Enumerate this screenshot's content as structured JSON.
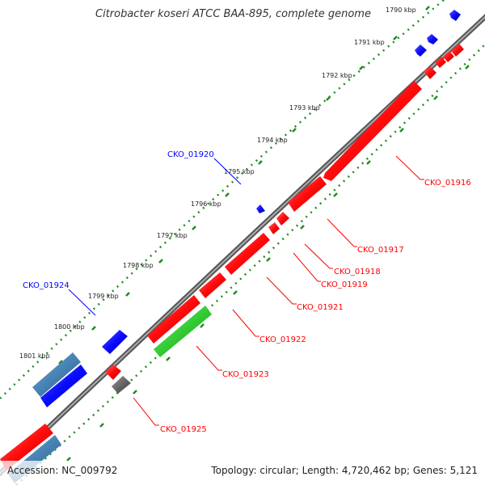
{
  "title": "Citrobacter koseri ATCC BAA-895, complete genome",
  "accession": "Accession: NC_009792",
  "summary": "Topology: circular; Length: 4,720,462 bp; Genes: 5,121",
  "ticks": [
    "1790 kbp",
    "1791 kbp",
    "1792 kbp",
    "1793 kbp",
    "1794 kbp",
    "1795 kbp",
    "1796 kbp",
    "1797 kbp",
    "1798 kbp",
    "1799 kbp",
    "1800 kbp",
    "1801 kbp"
  ],
  "genes": {
    "cko_01916": "CKO_01916",
    "cko_01917": "CKO_01917",
    "cko_01918": "CKO_01918",
    "cko_01919": "CKO_01919",
    "cko_01920": "CKO_01920",
    "cko_01921": "CKO_01921",
    "cko_01922": "CKO_01922",
    "cko_01923": "CKO_01923",
    "cko_01924": "CKO_01924",
    "cko_01925": "CKO_01925"
  },
  "colors": {
    "forward_gene": "#0a0aff",
    "reverse_gene": "#ff0a0a",
    "rna_gene": "#4682b4",
    "other_gene": "#33cc33",
    "pseudo_gene": "#666666",
    "backbone": "#888888",
    "tick_dots": "#228b22",
    "label_forward": "#0000ff",
    "label_reverse": "#ff0000"
  }
}
